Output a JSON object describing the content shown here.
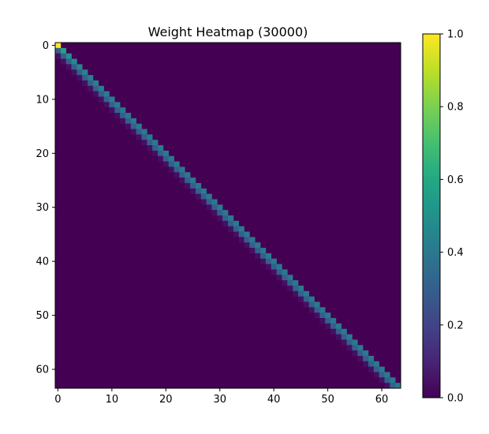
{
  "chart_data": {
    "type": "heatmap",
    "title": "Weight Heatmap (30000)",
    "xlabel": "",
    "ylabel": "",
    "rows": 64,
    "cols": 64,
    "xlim": [
      -0.5,
      63.5
    ],
    "ylim": [
      63.5,
      -0.5
    ],
    "x_ticks": [
      0,
      10,
      20,
      30,
      40,
      50,
      60
    ],
    "y_ticks": [
      0,
      10,
      20,
      30,
      40,
      50,
      60
    ],
    "colormap": "viridis",
    "colorbar": {
      "min": 0.0,
      "max": 1.0,
      "ticks": [
        "0.0",
        "0.2",
        "0.4",
        "0.6",
        "0.8",
        "1.0"
      ]
    },
    "structure": "lower-triangular; dominant main diagonal, weaker first sub-diagonal, near zero elsewhere",
    "diagonal_values": [
      1.0,
      0.58,
      0.5,
      0.47,
      0.45,
      0.44,
      0.43,
      0.43,
      0.42,
      0.42,
      0.42,
      0.42,
      0.41,
      0.41,
      0.41,
      0.41,
      0.41,
      0.41,
      0.41,
      0.41,
      0.41,
      0.41,
      0.41,
      0.41,
      0.41,
      0.41,
      0.41,
      0.41,
      0.41,
      0.41,
      0.41,
      0.41,
      0.41,
      0.41,
      0.41,
      0.41,
      0.41,
      0.41,
      0.41,
      0.41,
      0.41,
      0.41,
      0.41,
      0.41,
      0.41,
      0.41,
      0.41,
      0.41,
      0.41,
      0.41,
      0.41,
      0.41,
      0.41,
      0.41,
      0.41,
      0.41,
      0.41,
      0.41,
      0.41,
      0.41,
      0.41,
      0.41,
      0.41,
      0.41
    ],
    "sub_diagonal_value": 0.3,
    "second_sub_diagonal_value": 0.04,
    "background_value": 0.0
  }
}
